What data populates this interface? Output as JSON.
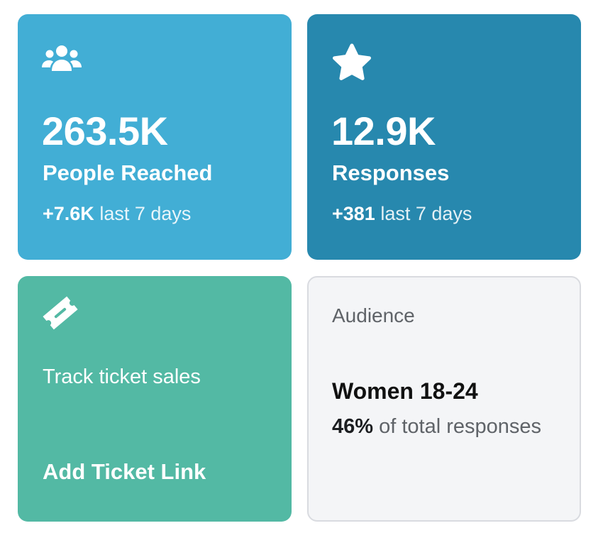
{
  "cards": {
    "reach": {
      "value": "263.5K",
      "label": "People Reached",
      "delta": "+7.6K",
      "delta_suffix": " last 7 days",
      "icon": "people-icon",
      "color": "#42aed5"
    },
    "responses": {
      "value": "12.9K",
      "label": "Responses",
      "delta": "+381",
      "delta_suffix": " last 7 days",
      "icon": "star-icon",
      "color": "#2788ae"
    },
    "tickets": {
      "text": "Track ticket sales",
      "link": "Add Ticket Link",
      "icon": "ticket-icon",
      "color": "#53b9a4"
    },
    "audience": {
      "title": "Audience",
      "segment": "Women 18-24",
      "percent": "46%",
      "percent_suffix": " of total responses"
    }
  }
}
